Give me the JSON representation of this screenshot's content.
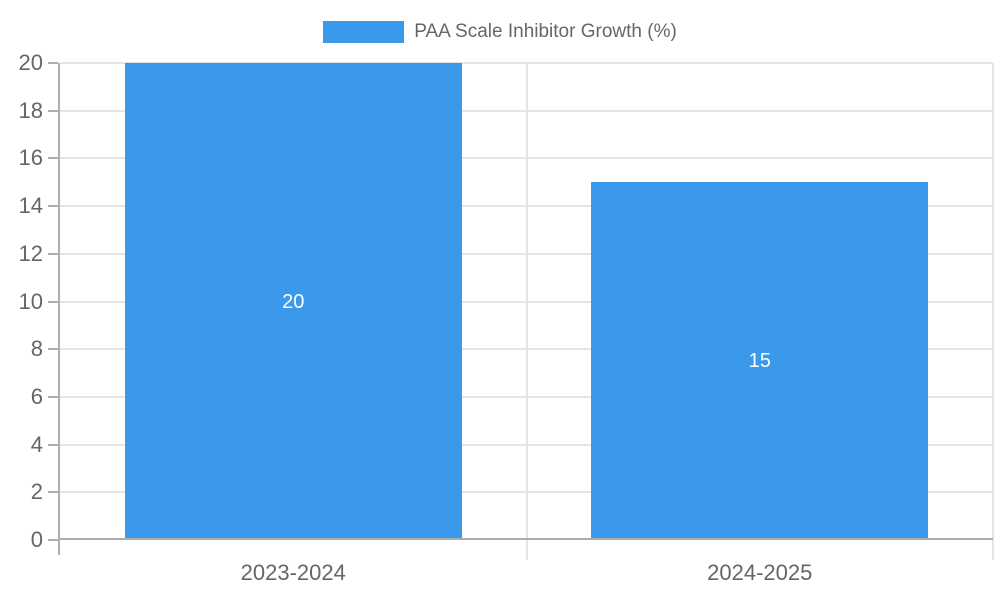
{
  "chart_data": {
    "type": "bar",
    "title": "",
    "legend": [
      "PAA Scale Inhibitor Growth (%)"
    ],
    "legend_position": "top-center",
    "categories": [
      "2023-2024",
      "2024-2025"
    ],
    "series": [
      {
        "name": "PAA Scale Inhibitor Growth (%)",
        "values": [
          20,
          15
        ]
      }
    ],
    "bar_labels": [
      "20",
      "15"
    ],
    "xlabel": "",
    "ylabel": "",
    "ylim": [
      0,
      20
    ],
    "y_ticks": [
      0,
      2,
      4,
      6,
      8,
      10,
      12,
      14,
      16,
      18,
      20
    ],
    "grid": true,
    "colors": {
      "bar": "#3b99ec",
      "bar_label": "#ffffff",
      "grid_line": "#e5e5e5",
      "axis_line": "#aeaeae",
      "tick_text": "#666666",
      "legend_text": "#666666",
      "background": "#ffffff"
    }
  }
}
